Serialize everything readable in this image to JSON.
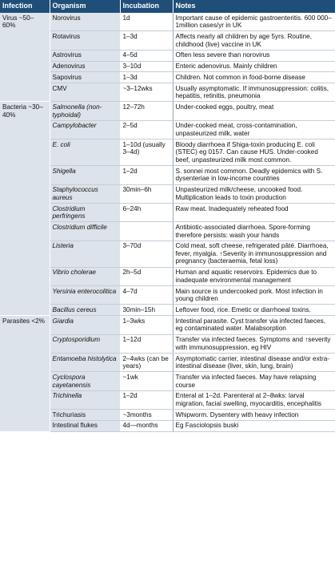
{
  "headers": [
    "Infection",
    "Organism",
    "Incubation",
    "Notes"
  ],
  "groups": [
    {
      "label": "Virus ~50–60%",
      "rows": [
        {
          "organism": "Norovirus",
          "italic": false,
          "incubation": "1d",
          "notes": "Important cause of epidemic gastroenteritis. 600 000–1million cases/yr in UK"
        },
        {
          "organism": "Rotavirus",
          "italic": false,
          "incubation": "1–3d",
          "notes": "Affects nearly all children by age 5yrs. Routine, childhood (live) vaccine in UK"
        },
        {
          "organism": "Astrovirus",
          "italic": false,
          "incubation": "4–5d",
          "notes": "Often less severe than norovirus"
        },
        {
          "organism": "Adenovirus",
          "italic": false,
          "incubation": "3–10d",
          "notes": "Enteric adenovirus. Mainly children"
        },
        {
          "organism": "Sapovirus",
          "italic": false,
          "incubation": "1–3d",
          "notes": "Children. Not common in food-borne disease"
        },
        {
          "organism": "CMV",
          "italic": false,
          "incubation": "~3–12wks",
          "notes": "Usually asymptomatic. If immunosuppression: colitis, hepatitis, retinitis, pneumonia"
        }
      ]
    },
    {
      "label": "Bacteria ~30–40%",
      "rows": [
        {
          "organism": "Salmonella (non-typhoidal)",
          "italic": true,
          "incubation": "12–72h",
          "notes": "Under-cooked eggs, poultry, meat"
        },
        {
          "organism": "Campylobacter",
          "italic": true,
          "incubation": "2–5d",
          "notes": "Under-cooked meat, cross-contamination, unpasteurized milk, water"
        },
        {
          "organism": "E. coli",
          "italic": true,
          "incubation": "1–10d (usually 3–4d)",
          "notes": "Bloody diarrhoea if Shiga-toxin producing E. coli (STEC) eg 0157. Can cause HUS. Under-cooked beef, unpasteurized milk most common."
        },
        {
          "organism": "Shigella",
          "italic": true,
          "incubation": "1–2d",
          "notes": "S. sonnei most common. Deadly epidemics with S. dysenteriae in low-income countries"
        },
        {
          "organism": "Staphylococcus aureus",
          "italic": true,
          "incubation": "30min–6h",
          "notes": "Unpasteurized milk/cheese, uncooked food. Multiplication leads to toxin production"
        },
        {
          "organism": "Clostridium perfringens",
          "italic": true,
          "incubation": "6–24h",
          "notes": "Raw meat. Inadequately reheated food"
        },
        {
          "organism": "Clostridium difficile",
          "italic": true,
          "incubation": "",
          "notes": "Antibiotic-associated diarrhoea. Spore-forming therefore persists: wash your hands"
        },
        {
          "organism": "Listeria",
          "italic": true,
          "incubation": "3–70d",
          "notes": "Cold meat, soft cheese, refrigerated pâté. Diarrhoea, fever, myalgia. ↑Severity in immunosuppression and pregnancy (bacteraemia, fetal loss)"
        },
        {
          "organism": "Vibrio cholerae",
          "italic": true,
          "incubation": "2h–5d",
          "notes": "Human and aquatic reservoirs. Epidemics due to inadequate environmental management"
        },
        {
          "organism": "Yersinia enterocolitica",
          "italic": true,
          "incubation": "4–7d",
          "notes": "Main source is undercooked pork. Most infection in young children"
        },
        {
          "organism": "Bacillus cereus",
          "italic": true,
          "incubation": "30min–15h",
          "notes": "Leftover food, rice. Emetic or diarrhoeal toxins."
        }
      ]
    },
    {
      "label": "Parasites <2%",
      "rows": [
        {
          "organism": "Giardia",
          "italic": true,
          "incubation": "1–3wks",
          "notes": "Intestinal parasite. Cyst transfer via infected faeces, eg contaminated water. Malabsorption"
        },
        {
          "organism": "Cryptosporidium",
          "italic": true,
          "incubation": "1–12d",
          "notes": "Transfer via infected faeces. Symptoms and ↑severity with immunosuppression, eg HIV"
        },
        {
          "organism": "Entamoeba histolytica",
          "italic": true,
          "incubation": "2–4wks (can be years)",
          "notes": "Asymptomatic carrier, intestinal disease and/or extra-intestinal disease (liver, skin, lung, brain)"
        },
        {
          "organism": "Cyclospora cayetanensis",
          "italic": true,
          "incubation": "~1wk",
          "notes": "Transfer via infected faeces. May have relapsing course"
        },
        {
          "organism": "Trichinella",
          "italic": true,
          "incubation": "1–2d",
          "notes": "Enteral at 1–2d. Parenteral at 2–8wks: larval migration, facial swelling, myocarditis, encephalitis"
        },
        {
          "organism": "Trichuriasis",
          "italic": false,
          "incubation": "~3months",
          "notes": "Whipworm. Dysentery with heavy infection"
        },
        {
          "organism": "Intestinal flukes",
          "italic": false,
          "incubation": "4d—months",
          "notes": "Eg Fasciolopsis buski"
        }
      ]
    }
  ],
  "colors": {
    "header_bg": "#1f4e79",
    "shade_bg": "#dde3ea"
  }
}
